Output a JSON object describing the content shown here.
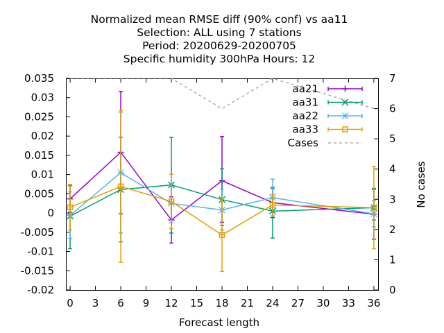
{
  "chart_data": {
    "type": "line",
    "title_lines": [
      "Normalized mean RMSE diff (90% conf) vs aa11",
      "Selection: ALL using     7 stations",
      "Period: 20200629-20200705",
      "Specific humidity 300hPa   Hours:  12"
    ],
    "xlabel": "Forecast length",
    "ylabel": "",
    "y2label": "No cases",
    "xlim": [
      -0.5,
      36.5
    ],
    "ylim": [
      -0.02,
      0.035
    ],
    "y2lim": [
      0,
      7
    ],
    "xticks": [
      "0",
      "3",
      "6",
      "9",
      "12",
      "15",
      "18",
      "21",
      "24",
      "27",
      "30",
      "33",
      "36"
    ],
    "yticks": [
      "0.035",
      "0.03",
      "0.025",
      "0.02",
      "0.015",
      "0.01",
      "0.005",
      "0",
      "-0.005",
      "-0.01",
      "-0.015",
      "-0.02"
    ],
    "y2ticks": [
      "7",
      "6",
      "5",
      "4",
      "3",
      "2",
      "1",
      "0"
    ],
    "legend_position": "top-right",
    "grid": false,
    "series": [
      {
        "name": "aa21",
        "color": "#9400d3",
        "marker": "plus",
        "x": [
          0,
          6,
          12,
          18,
          24,
          36
        ],
        "y": [
          0.0037,
          0.0158,
          -0.0018,
          0.0084,
          0.0027,
          -0.0003
        ],
        "err_low": [
          0.0002,
          -0.0002,
          -0.0078,
          -0.0024,
          -0.0012,
          -0.0068
        ],
        "err_high": [
          0.0072,
          0.0316,
          0.0042,
          0.0199,
          0.0067,
          0.0062
        ]
      },
      {
        "name": "aa31",
        "color": "#009e73",
        "marker": "cross",
        "x": [
          0,
          6,
          12,
          18,
          24,
          36
        ],
        "y": [
          -0.0008,
          0.0061,
          0.0073,
          0.0035,
          0.0005,
          0.0014
        ],
        "err_low": [
          -0.0093,
          -0.0075,
          -0.0052,
          -0.0032,
          -0.0065,
          -0.0018
        ],
        "err_high": [
          0.0071,
          0.0197,
          0.0197,
          0.0115,
          0.0063,
          0.0064
        ]
      },
      {
        "name": "aa22",
        "color": "#56b4e9",
        "marker": "star",
        "x": [
          0,
          6,
          12,
          18,
          24,
          36
        ],
        "y": [
          -0.0006,
          0.0105,
          0.0025,
          0.0008,
          0.004,
          -0.0002
        ],
        "err_low": [
          -0.0066,
          -0.0052,
          -0.0025,
          -0.0044,
          -0.0008,
          -0.0036
        ],
        "err_high": [
          0.0055,
          0.0262,
          0.0075,
          0.0062,
          0.0088,
          0.0032
        ]
      },
      {
        "name": "aa33",
        "color": "#e69f00",
        "marker": "square",
        "x": [
          0,
          6,
          12,
          18,
          24,
          36
        ],
        "y": [
          0.0015,
          0.0069,
          0.003,
          -0.0057,
          0.0021,
          0.0014
        ],
        "err_low": [
          -0.0044,
          -0.0128,
          -0.004,
          -0.0152,
          -0.0007,
          -0.0093
        ],
        "err_high": [
          0.0074,
          0.0266,
          0.0101,
          0.0038,
          0.0049,
          0.0121
        ]
      }
    ],
    "cases": {
      "name": "Cases",
      "color": "#a0a0a0",
      "x": [
        0,
        6,
        12,
        18,
        24,
        36
      ],
      "y": [
        7,
        7,
        7,
        6,
        7,
        6
      ]
    }
  }
}
